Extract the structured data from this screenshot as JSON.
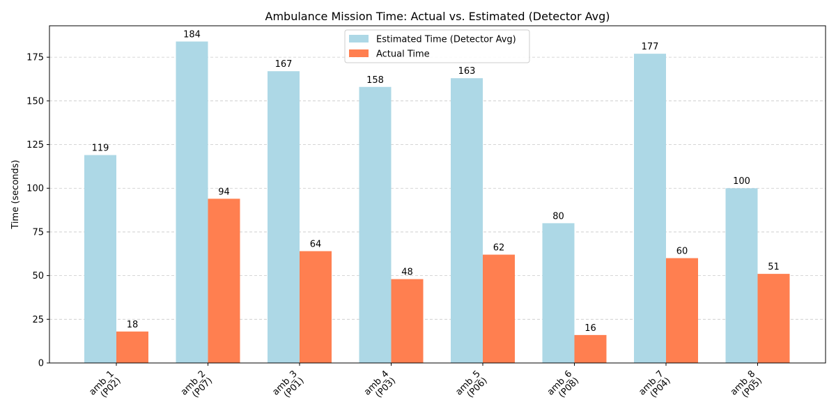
{
  "chart_data": {
    "type": "bar",
    "title": "Ambulance Mission Time: Actual vs. Estimated (Detector Avg)",
    "xlabel": "",
    "ylabel": "Time (seconds)",
    "ylim": [
      0,
      193
    ],
    "yticks": [
      0,
      25,
      50,
      75,
      100,
      125,
      150,
      175
    ],
    "grid": "y-dashed",
    "legend_position": "top-center",
    "categories": [
      [
        "amb_1",
        "(P02)"
      ],
      [
        "amb_2",
        "(P07)"
      ],
      [
        "amb_3",
        "(P01)"
      ],
      [
        "amb_4",
        "(P03)"
      ],
      [
        "amb_5",
        "(P06)"
      ],
      [
        "amb_6",
        "(P08)"
      ],
      [
        "amb_7",
        "(P04)"
      ],
      [
        "amb_8",
        "(P05)"
      ]
    ],
    "series": [
      {
        "name": "Estimated Time (Detector Avg)",
        "color": "#add8e6",
        "values": [
          119,
          184,
          167,
          158,
          163,
          80,
          177,
          100
        ]
      },
      {
        "name": "Actual Time",
        "color": "#ff7f50",
        "values": [
          18,
          94,
          64,
          48,
          62,
          16,
          60,
          51
        ]
      }
    ]
  }
}
